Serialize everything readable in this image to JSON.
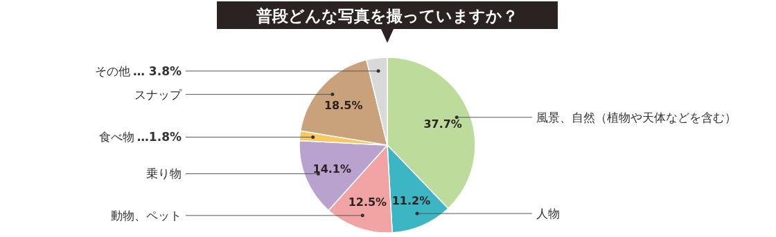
{
  "chart_data": {
    "type": "pie",
    "title": "普段どんな写真を撮っていますか？",
    "categories": [
      "風景、自然（植物や天体などを含む）",
      "人物",
      "動物、ペット",
      "乗り物",
      "食べ物",
      "スナップ",
      "その他"
    ],
    "values": [
      37.7,
      11.2,
      12.5,
      14.1,
      1.8,
      18.5,
      3.8
    ],
    "colors": [
      "#bddc9c",
      "#3cb6c2",
      "#f2a3a3",
      "#baa2cf",
      "#f9c862",
      "#c9a17b",
      "#d9d9d9"
    ],
    "value_labels": [
      "37.7%",
      "11.2%",
      "12.5%",
      "14.1%",
      "…1.8%",
      "18.5%",
      "… 3.8%"
    ]
  }
}
